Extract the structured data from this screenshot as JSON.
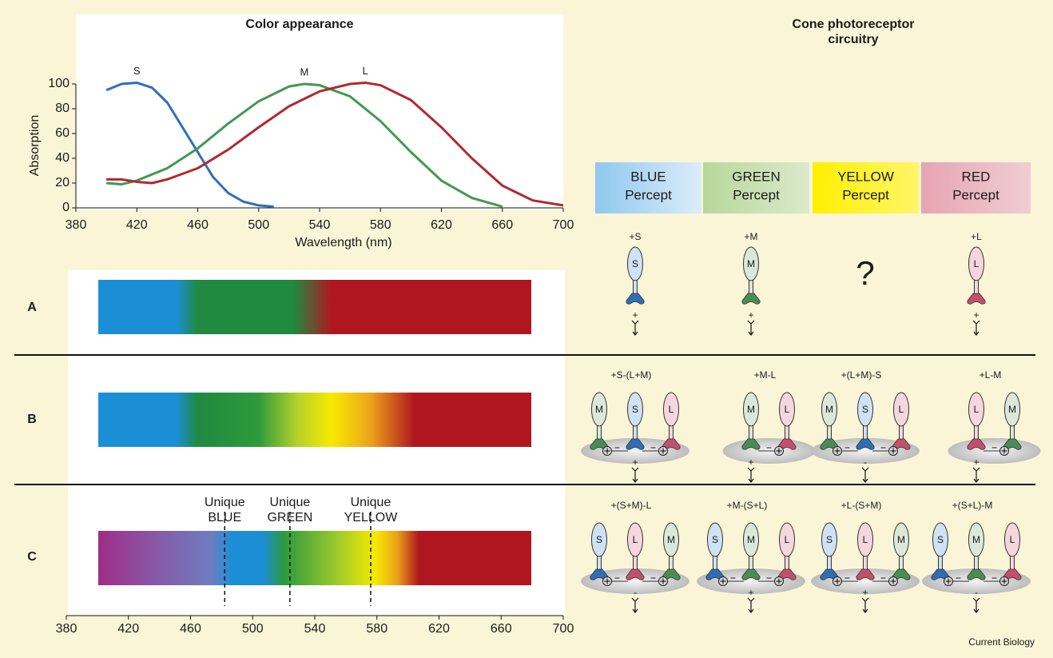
{
  "chart_data": {
    "type": "line",
    "x_label": "Wavelength (nm)",
    "y_label": "Absorption",
    "xlim": [
      380,
      700
    ],
    "xticks": [
      380,
      420,
      460,
      500,
      540,
      580,
      620,
      660,
      700
    ],
    "ylim": [
      0,
      100
    ],
    "yticks": [
      0,
      20,
      40,
      60,
      80,
      100
    ],
    "series": [
      {
        "name": "S",
        "color": "#2f6fb9",
        "x": [
          400,
          410,
          420,
          430,
          440,
          450,
          460,
          470,
          480,
          490,
          500,
          510
        ],
        "values": [
          95,
          100,
          101,
          97,
          85,
          65,
          45,
          25,
          12,
          5,
          2,
          1
        ]
      },
      {
        "name": "M",
        "color": "#3f9a50",
        "x": [
          400,
          410,
          420,
          440,
          460,
          480,
          500,
          520,
          530,
          540,
          560,
          580,
          600,
          620,
          640,
          660
        ],
        "values": [
          20,
          19,
          22,
          32,
          48,
          68,
          86,
          98,
          100,
          99,
          90,
          70,
          45,
          22,
          8,
          1
        ]
      },
      {
        "name": "L",
        "color": "#b3282c",
        "x": [
          400,
          410,
          420,
          430,
          440,
          460,
          480,
          500,
          520,
          540,
          560,
          570,
          580,
          600,
          620,
          640,
          660,
          680,
          700
        ],
        "values": [
          23,
          23,
          21,
          20,
          23,
          32,
          47,
          65,
          82,
          94,
          100,
          101,
          99,
          87,
          65,
          40,
          18,
          6,
          2
        ]
      }
    ]
  },
  "left_title": "Color appearance",
  "right_title": [
    "Cone photoreceptor",
    "circuitry"
  ],
  "percepts": [
    {
      "name": "BLUE",
      "label": "Percept"
    },
    {
      "name": "GREEN",
      "label": "Percept"
    },
    {
      "name": "YELLOW",
      "label": "Percept"
    },
    {
      "name": "RED",
      "label": "Percept"
    }
  ],
  "rows": [
    {
      "label": "A",
      "circuits": [
        {
          "formula": "+S",
          "cones": [
            "S"
          ],
          "output": "+"
        },
        {
          "formula": "+M",
          "cones": [
            "M"
          ],
          "output": "+"
        },
        {
          "formula": "?",
          "cones": []
        },
        {
          "formula": "+L",
          "cones": [
            "L"
          ],
          "output": "+"
        }
      ]
    },
    {
      "label": "B",
      "circuits": [
        {
          "formula": "+S-(L+M)",
          "cones": [
            "M",
            "S",
            "L"
          ],
          "output": "+"
        },
        {
          "formula": "+M-L",
          "cones": [
            "M",
            "L"
          ],
          "output": "+"
        },
        {
          "formula": "+(L+M)-S",
          "cones": [
            "M",
            "S",
            "L"
          ],
          "output": "-"
        },
        {
          "formula": "+L-M",
          "cones": [
            "L",
            "M"
          ],
          "output": "+"
        }
      ]
    },
    {
      "label": "C",
      "circuits": [
        {
          "formula": "+(S+M)-L",
          "cones": [
            "S",
            "L",
            "M"
          ],
          "output": "-"
        },
        {
          "formula": "+M-(S+L)",
          "cones": [
            "S",
            "M",
            "L"
          ],
          "output": "+"
        },
        {
          "formula": "+L-(S+M)",
          "cones": [
            "S",
            "L",
            "M"
          ],
          "output": "+"
        },
        {
          "formula": "+(S+L)-M",
          "cones": [
            "S",
            "M",
            "L"
          ],
          "output": "-"
        }
      ]
    }
  ],
  "unique_hues": [
    {
      "line1": "Unique",
      "line2": "BLUE",
      "wavelength": 482
    },
    {
      "line1": "Unique",
      "line2": "GREEN",
      "wavelength": 524
    },
    {
      "line1": "Unique",
      "line2": "YELLOW",
      "wavelength": 576
    }
  ],
  "spectrum_axis": {
    "xlim": [
      380,
      700
    ],
    "xticks": [
      380,
      420,
      460,
      500,
      540,
      580,
      620,
      660,
      700
    ]
  },
  "credit": "Current Biology"
}
